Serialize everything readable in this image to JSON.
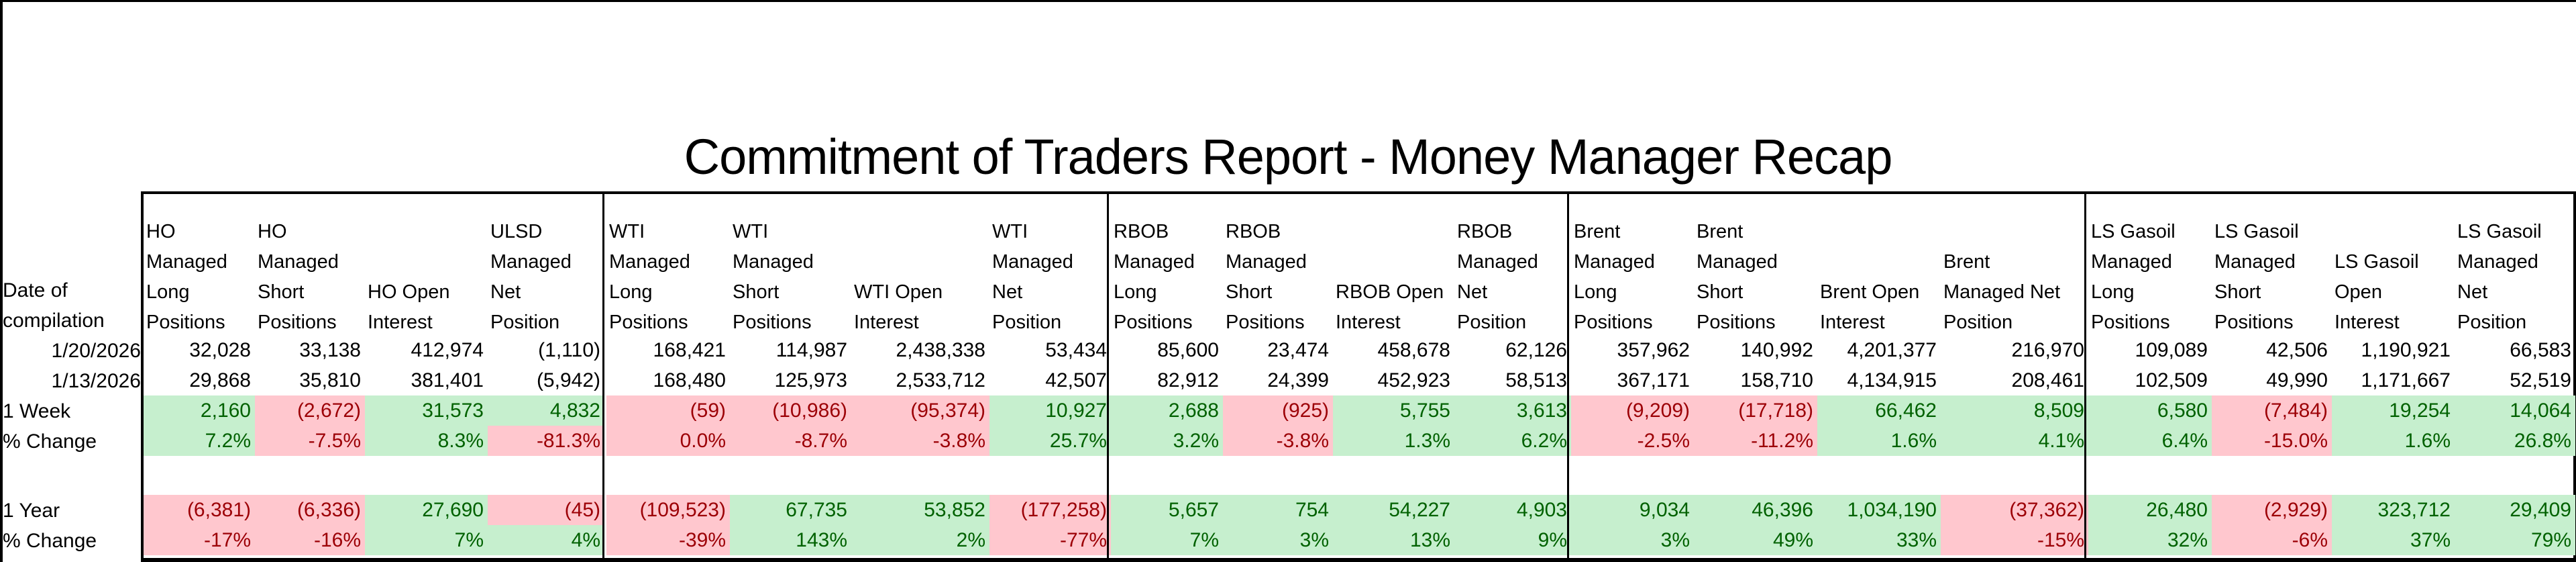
{
  "title": "Commitment of Traders Report - Money Manager Recap",
  "colors": {
    "positive_fill": "#C6EFCE",
    "positive_text": "#006100",
    "negative_fill": "#FFC7CE",
    "negative_text": "#9C0006"
  },
  "row_labels": {
    "date_header": "Date of\ncompilation",
    "date_current": "1/20/2026",
    "date_prior": "1/13/2026",
    "week_change": "1 Week",
    "week_pct": "% Change",
    "year_change": "1 Year",
    "year_pct": "% Change"
  },
  "sections": [
    {
      "name": "HO",
      "columns": [
        {
          "header": "HO\nManaged\nLong\nPositions",
          "current": "32,028",
          "prior": "29,868",
          "week": "2,160",
          "week_pct": "7.2%",
          "year": "(6,381)",
          "year_pct": "-17%",
          "week_sign": "pos",
          "week_pct_sign": "pos",
          "year_sign": "neg",
          "year_pct_sign": "neg"
        },
        {
          "header": "HO\nManaged\nShort\nPositions",
          "current": "33,138",
          "prior": "35,810",
          "week": "(2,672)",
          "week_pct": "-7.5%",
          "year": "(6,336)",
          "year_pct": "-16%",
          "week_sign": "neg",
          "week_pct_sign": "neg",
          "year_sign": "neg",
          "year_pct_sign": "neg"
        },
        {
          "header": "\n\nHO Open\nInterest",
          "current": "412,974",
          "prior": "381,401",
          "week": "31,573",
          "week_pct": "8.3%",
          "year": "27,690",
          "year_pct": "7%",
          "week_sign": "pos",
          "week_pct_sign": "pos",
          "year_sign": "pos",
          "year_pct_sign": "pos"
        },
        {
          "header": "ULSD\nManaged\nNet\nPosition",
          "current": "(1,110)",
          "prior": "(5,942)",
          "week": "4,832",
          "week_pct": "-81.3%",
          "year": "(45)",
          "year_pct": "4%",
          "week_sign": "pos",
          "week_pct_sign": "neg",
          "year_sign": "neg",
          "year_pct_sign": "pos"
        }
      ]
    },
    {
      "name": "WTI",
      "columns": [
        {
          "header": "WTI\nManaged\nLong\nPositions",
          "current": "168,421",
          "prior": "168,480",
          "week": "(59)",
          "week_pct": "0.0%",
          "year": "(109,523)",
          "year_pct": "-39%",
          "week_sign": "neg",
          "week_pct_sign": "neg",
          "year_sign": "neg",
          "year_pct_sign": "neg"
        },
        {
          "header": "WTI\nManaged\nShort\nPositions",
          "current": "114,987",
          "prior": "125,973",
          "week": "(10,986)",
          "week_pct": "-8.7%",
          "year": "67,735",
          "year_pct": "143%",
          "week_sign": "neg",
          "week_pct_sign": "neg",
          "year_sign": "pos",
          "year_pct_sign": "pos"
        },
        {
          "header": "\n\nWTI Open\nInterest",
          "current": "2,438,338",
          "prior": "2,533,712",
          "week": "(95,374)",
          "week_pct": "-3.8%",
          "year": "53,852",
          "year_pct": "2%",
          "week_sign": "neg",
          "week_pct_sign": "neg",
          "year_sign": "pos",
          "year_pct_sign": "pos"
        },
        {
          "header": "WTI\nManaged\nNet\nPosition",
          "current": "53,434",
          "prior": "42,507",
          "week": "10,927",
          "week_pct": "25.7%",
          "year": "(177,258)",
          "year_pct": "-77%",
          "week_sign": "pos",
          "week_pct_sign": "pos",
          "year_sign": "neg",
          "year_pct_sign": "neg"
        }
      ]
    },
    {
      "name": "RBOB",
      "columns": [
        {
          "header": "RBOB\nManaged\nLong\nPositions",
          "current": "85,600",
          "prior": "82,912",
          "week": "2,688",
          "week_pct": "3.2%",
          "year": "5,657",
          "year_pct": "7%",
          "week_sign": "pos",
          "week_pct_sign": "pos",
          "year_sign": "pos",
          "year_pct_sign": "pos"
        },
        {
          "header": "RBOB\nManaged\nShort\nPositions",
          "current": "23,474",
          "prior": "24,399",
          "week": "(925)",
          "week_pct": "-3.8%",
          "year": "754",
          "year_pct": "3%",
          "week_sign": "neg",
          "week_pct_sign": "neg",
          "year_sign": "pos",
          "year_pct_sign": "pos"
        },
        {
          "header": "\n\nRBOB Open\nInterest",
          "current": "458,678",
          "prior": "452,923",
          "week": "5,755",
          "week_pct": "1.3%",
          "year": "54,227",
          "year_pct": "13%",
          "week_sign": "pos",
          "week_pct_sign": "pos",
          "year_sign": "pos",
          "year_pct_sign": "pos"
        },
        {
          "header": "RBOB\nManaged\nNet\nPosition",
          "current": "62,126",
          "prior": "58,513",
          "week": "3,613",
          "week_pct": "6.2%",
          "year": "4,903",
          "year_pct": "9%",
          "week_sign": "pos",
          "week_pct_sign": "pos",
          "year_sign": "pos",
          "year_pct_sign": "pos"
        }
      ]
    },
    {
      "name": "Brent",
      "columns": [
        {
          "header": "Brent\nManaged\nLong\nPositions",
          "current": "357,962",
          "prior": "367,171",
          "week": "(9,209)",
          "week_pct": "-2.5%",
          "year": "9,034",
          "year_pct": "3%",
          "week_sign": "neg",
          "week_pct_sign": "neg",
          "year_sign": "pos",
          "year_pct_sign": "pos"
        },
        {
          "header": "Brent\nManaged\nShort\nPositions",
          "current": "140,992",
          "prior": "158,710",
          "week": "(17,718)",
          "week_pct": "-11.2%",
          "year": "46,396",
          "year_pct": "49%",
          "week_sign": "neg",
          "week_pct_sign": "neg",
          "year_sign": "pos",
          "year_pct_sign": "pos"
        },
        {
          "header": "\n\nBrent Open\nInterest",
          "current": "4,201,377",
          "prior": "4,134,915",
          "week": "66,462",
          "week_pct": "1.6%",
          "year": "1,034,190",
          "year_pct": "33%",
          "week_sign": "pos",
          "week_pct_sign": "pos",
          "year_sign": "pos",
          "year_pct_sign": "pos"
        },
        {
          "header": "\nBrent\nManaged Net\nPosition",
          "current": "216,970",
          "prior": "208,461",
          "week": "8,509",
          "week_pct": "4.1%",
          "year": "(37,362)",
          "year_pct": "-15%",
          "week_sign": "pos",
          "week_pct_sign": "pos",
          "year_sign": "neg",
          "year_pct_sign": "neg"
        }
      ]
    },
    {
      "name": "LS Gasoil",
      "columns": [
        {
          "header": "LS Gasoil\nManaged\nLong\nPositions",
          "current": "109,089",
          "prior": "102,509",
          "week": "6,580",
          "week_pct": "6.4%",
          "year": "26,480",
          "year_pct": "32%",
          "week_sign": "pos",
          "week_pct_sign": "pos",
          "year_sign": "pos",
          "year_pct_sign": "pos"
        },
        {
          "header": "LS Gasoil\nManaged\nShort\nPositions",
          "current": "42,506",
          "prior": "49,990",
          "week": "(7,484)",
          "week_pct": "-15.0%",
          "year": "(2,929)",
          "year_pct": "-6%",
          "week_sign": "neg",
          "week_pct_sign": "neg",
          "year_sign": "neg",
          "year_pct_sign": "neg"
        },
        {
          "header": "\nLS Gasoil\nOpen\nInterest",
          "current": "1,190,921",
          "prior": "1,171,667",
          "week": "19,254",
          "week_pct": "1.6%",
          "year": "323,712",
          "year_pct": "37%",
          "week_sign": "pos",
          "week_pct_sign": "pos",
          "year_sign": "pos",
          "year_pct_sign": "pos"
        },
        {
          "header": "LS Gasoil\nManaged\nNet\nPosition",
          "current": "66,583",
          "prior": "52,519",
          "week": "14,064",
          "week_pct": "26.8%",
          "year": "29,409",
          "year_pct": "79%",
          "week_sign": "pos",
          "week_pct_sign": "pos",
          "year_sign": "pos",
          "year_pct_sign": "pos"
        }
      ]
    }
  ]
}
